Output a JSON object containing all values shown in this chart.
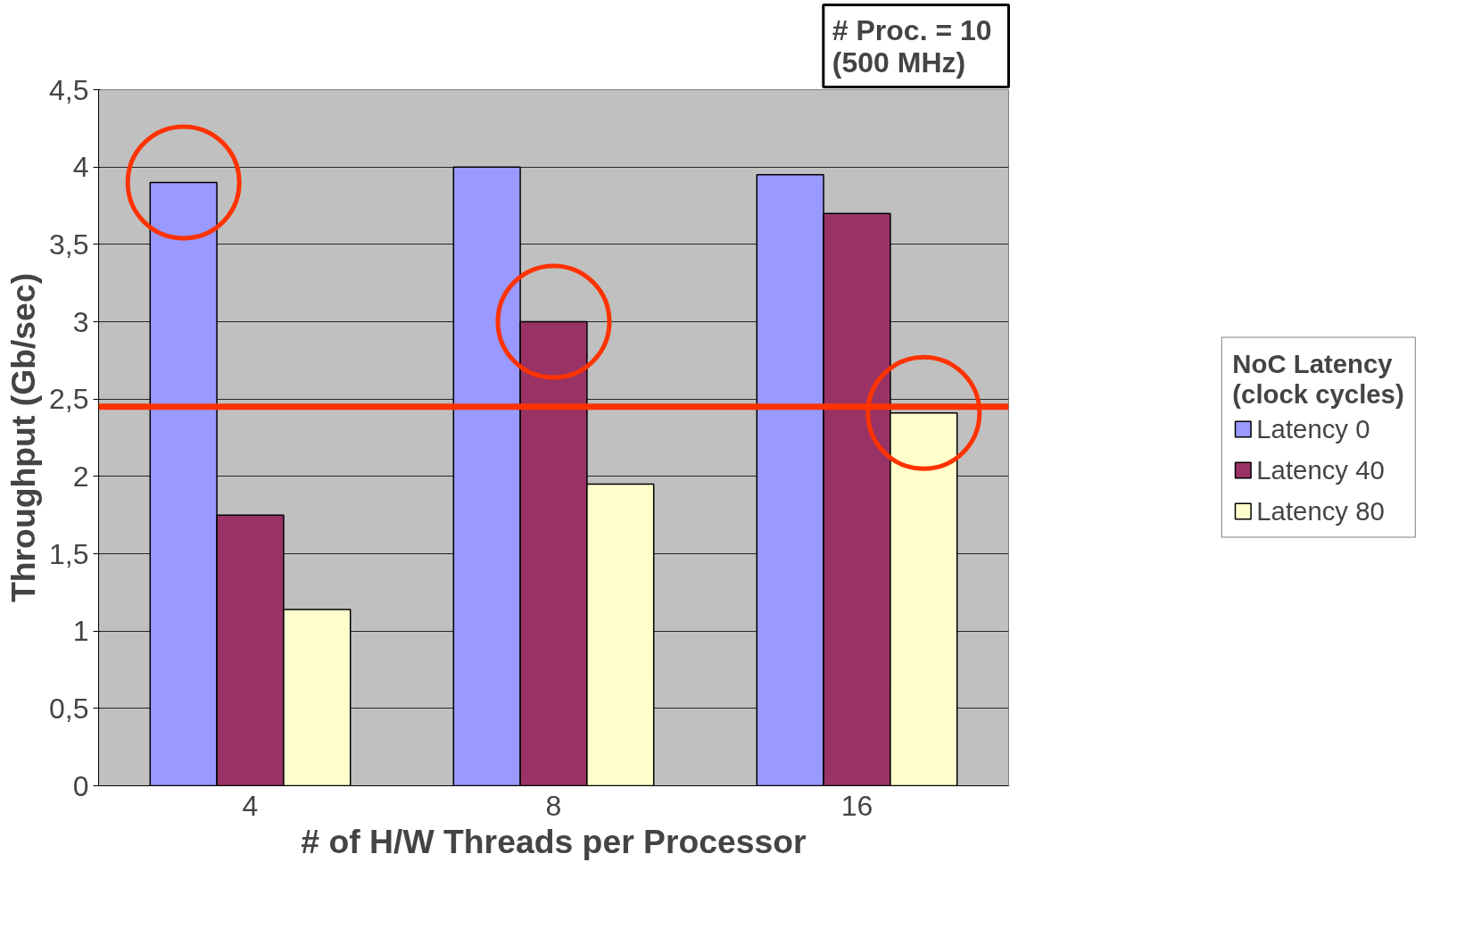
{
  "chart_data": {
    "type": "bar",
    "xlabel": "# of H/W Threads per Processor",
    "ylabel": "Throughput (Gb/sec)",
    "legend_title": "NoC Latency\n(clock cycles)",
    "categories": [
      "4",
      "8",
      "16"
    ],
    "series": [
      {
        "name": "Latency 0",
        "color": "#9999ff",
        "values": [
          3.9,
          4.0,
          3.95
        ]
      },
      {
        "name": "Latency 40",
        "color": "#993366",
        "values": [
          1.75,
          3.0,
          3.7
        ]
      },
      {
        "name": "Latency 80",
        "color": "#ffffcc",
        "values": [
          1.14,
          1.95,
          2.41
        ]
      }
    ],
    "ylim": [
      0,
      4.5
    ],
    "yticks": [
      0,
      {
        "value": 0.5,
        "label": "0,5"
      },
      1,
      {
        "value": 1.5,
        "label": "1,5"
      },
      2,
      {
        "value": 2.5,
        "label": "2,5"
      },
      3,
      {
        "value": 3.5,
        "label": "3,5"
      },
      4,
      {
        "value": 4.5,
        "label": "4,5"
      }
    ],
    "ref_lines": [
      {
        "axis": "y",
        "value": 2.45,
        "label": null,
        "color": "#ff3300"
      }
    ],
    "annotations": [
      "# Proc. =  10\n(500 MHz)"
    ],
    "grid": "y",
    "legend": "right"
  }
}
